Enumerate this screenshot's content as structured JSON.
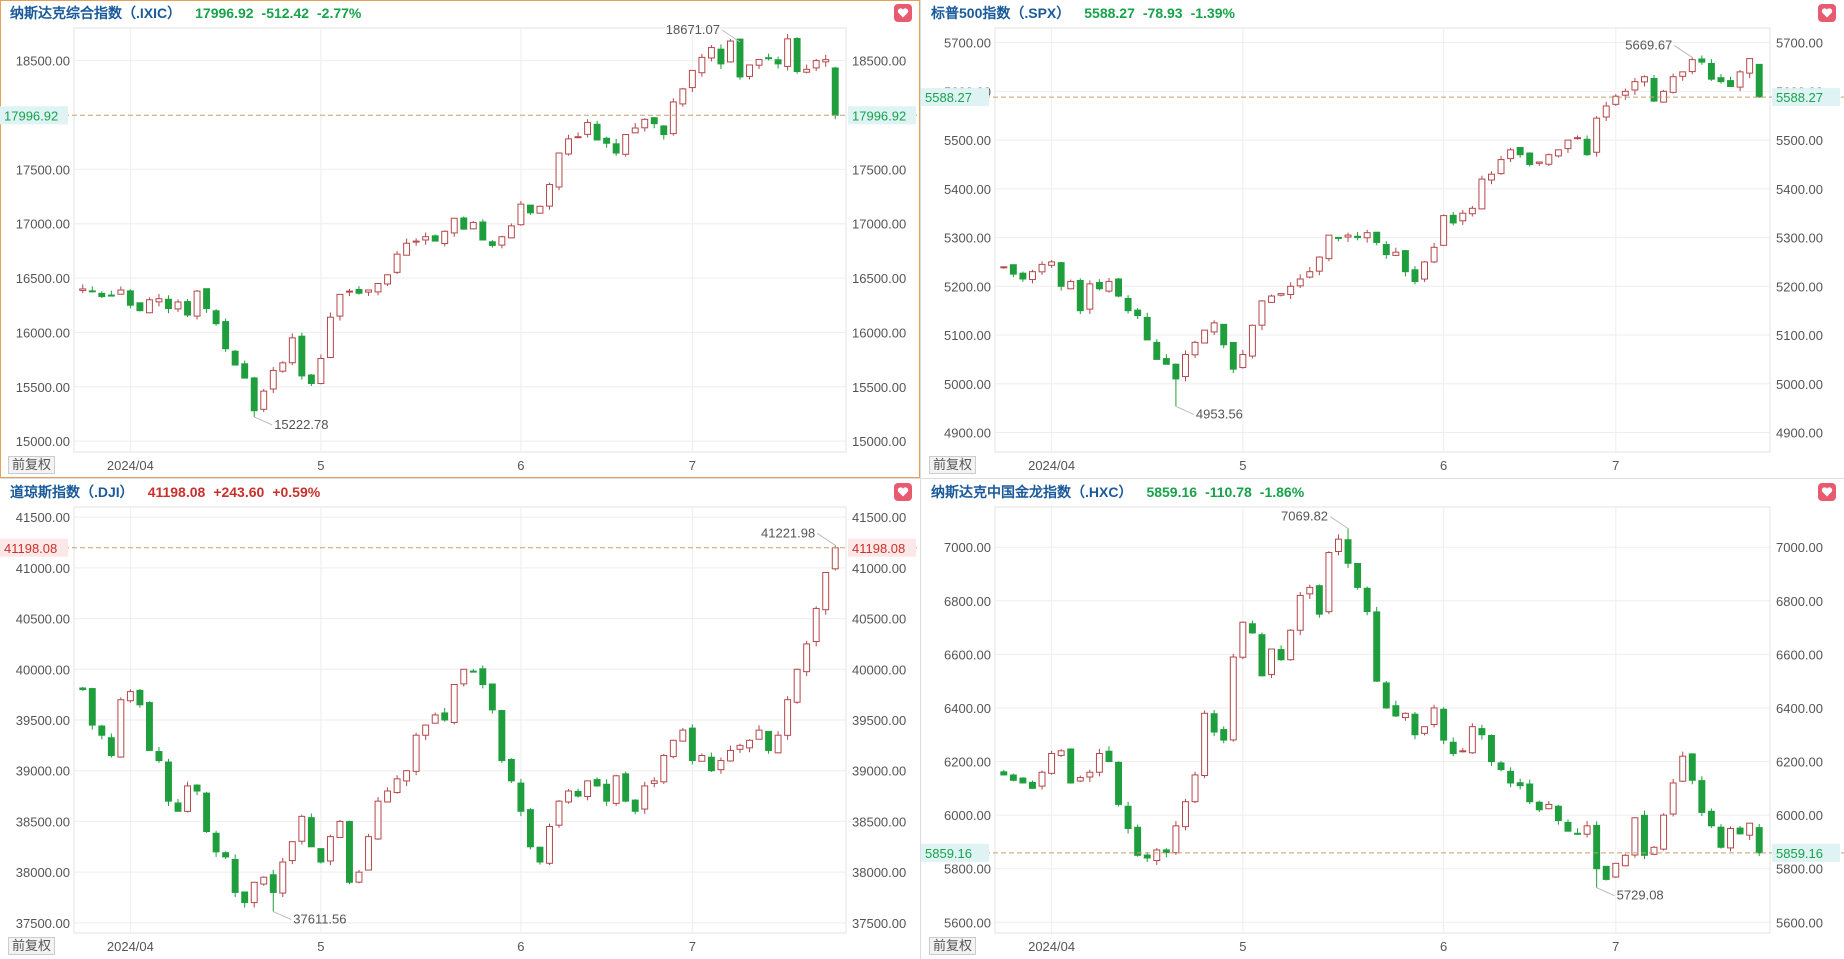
{
  "adj_label": "前复权",
  "chart_data": [
    {
      "type": "candlestick",
      "title": "纳斯达克综合指数（.IXIC）",
      "last": "17996.92",
      "change": "-512.42",
      "change_pct": "-2.77%",
      "direction": "down",
      "ylim": [
        14900,
        18800
      ],
      "yticks": [
        "18500.00",
        "17500.00",
        "17000.00",
        "16500.00",
        "16000.00",
        "15500.00",
        "15000.00"
      ],
      "ytick_values": [
        18500,
        17500,
        17000,
        16500,
        16000,
        15500,
        15000
      ],
      "xticks": [
        {
          "label": "2024/04",
          "i": 5
        },
        {
          "label": "5",
          "i": 25
        },
        {
          "label": "6",
          "i": 46
        },
        {
          "label": "7",
          "i": 64
        }
      ],
      "price_line": 17996.92,
      "high_label": "18671.07",
      "high_i": 69,
      "low_label": "15222.78",
      "low_i": 18,
      "closes": [
        16400,
        16380,
        16330,
        16340,
        16390,
        16250,
        16200,
        16300,
        16310,
        16220,
        16280,
        16160,
        16380,
        16220,
        16080,
        15850,
        15700,
        15580,
        15280,
        15460,
        15650,
        15720,
        15950,
        15600,
        15530,
        15760,
        16140,
        16350,
        16380,
        16360,
        16390,
        16450,
        16530,
        16720,
        16820,
        16840,
        16880,
        16840,
        16930,
        17050,
        16950,
        17010,
        16850,
        16800,
        16880,
        16980,
        17180,
        17100,
        17160,
        17360,
        17650,
        17780,
        17800,
        17930,
        17770,
        17740,
        17650,
        17820,
        17880,
        17960,
        17920,
        17820,
        18120,
        18240,
        18410,
        18530,
        18620,
        18470,
        18680,
        18350,
        18460,
        18510,
        18520,
        18470,
        18700,
        18400,
        18420,
        18500,
        18509,
        17996.92
      ]
    },
    {
      "type": "candlestick",
      "title": "标普500指数（.SPX）",
      "last": "5588.27",
      "change": "-78.93",
      "change_pct": "-1.39%",
      "direction": "down",
      "ylim": [
        4860,
        5730
      ],
      "yticks": [
        "5700.00",
        "5600.00",
        "5500.00",
        "5400.00",
        "5300.00",
        "5200.00",
        "5100.00",
        "5000.00",
        "4900.00"
      ],
      "ytick_values": [
        5700,
        5600,
        5500,
        5400,
        5300,
        5200,
        5100,
        5000,
        4900
      ],
      "xticks": [
        {
          "label": "2024/04",
          "i": 5
        },
        {
          "label": "5",
          "i": 25
        },
        {
          "label": "6",
          "i": 46
        },
        {
          "label": "7",
          "i": 64
        }
      ],
      "price_line": 5588.27,
      "high_label": "5669.67",
      "high_i": 72,
      "low_label": "4953.56",
      "low_i": 18,
      "closes": [
        5240,
        5225,
        5215,
        5230,
        5245,
        5250,
        5200,
        5210,
        5150,
        5205,
        5195,
        5210,
        5180,
        5150,
        5140,
        5090,
        5050,
        5040,
        5010,
        5060,
        5085,
        5110,
        5125,
        5080,
        5030,
        5060,
        5120,
        5170,
        5180,
        5185,
        5200,
        5215,
        5230,
        5260,
        5305,
        5300,
        5305,
        5300,
        5310,
        5290,
        5265,
        5270,
        5230,
        5210,
        5250,
        5280,
        5345,
        5330,
        5350,
        5360,
        5420,
        5430,
        5460,
        5480,
        5470,
        5450,
        5455,
        5470,
        5480,
        5500,
        5505,
        5470,
        5545,
        5570,
        5590,
        5600,
        5620,
        5630,
        5580,
        5600,
        5630,
        5640,
        5665,
        5660,
        5625,
        5620,
        5610,
        5640,
        5667.2,
        5588.27
      ]
    },
    {
      "type": "candlestick",
      "title": "道琼斯指数（.DJI）",
      "last": "41198.08",
      "change": "+243.60",
      "change_pct": "+0.59%",
      "direction": "up",
      "ylim": [
        37400,
        41600
      ],
      "yticks": [
        "41500.00",
        "41000.00",
        "40500.00",
        "40000.00",
        "39500.00",
        "39000.00",
        "38500.00",
        "38000.00",
        "37500.00"
      ],
      "ytick_values": [
        41500,
        41000,
        40500,
        40000,
        39500,
        39000,
        38500,
        38000,
        37500
      ],
      "xticks": [
        {
          "label": "2024/04",
          "i": 5
        },
        {
          "label": "5",
          "i": 25
        },
        {
          "label": "6",
          "i": 46
        },
        {
          "label": "7",
          "i": 64
        }
      ],
      "price_line": 41198.08,
      "high_label": "41221.98",
      "high_i": 79,
      "low_label": "37611.56",
      "low_i": 20,
      "closes": [
        39800,
        39450,
        39350,
        39150,
        39700,
        39780,
        39650,
        39200,
        39100,
        38700,
        38600,
        38850,
        38800,
        38400,
        38200,
        38150,
        37800,
        37700,
        37900,
        37950,
        37800,
        38100,
        38300,
        38550,
        38250,
        38100,
        38350,
        38500,
        37900,
        38000,
        38350,
        38700,
        38800,
        38920,
        39000,
        39350,
        39450,
        39550,
        39500,
        39850,
        40000,
        39980,
        39850,
        39600,
        39100,
        38900,
        38600,
        38250,
        38100,
        38450,
        38700,
        38800,
        38750,
        38900,
        38850,
        38700,
        38950,
        38700,
        38600,
        38850,
        38900,
        39150,
        39300,
        39400,
        39100,
        39150,
        39000,
        39100,
        39200,
        39250,
        39300,
        39400,
        39200,
        39350,
        39700,
        40000,
        40250,
        40600,
        40954.48,
        41198.08
      ]
    },
    {
      "type": "candlestick",
      "title": "纳斯达克中国金龙指数（.HXC）",
      "last": "5859.16",
      "change": "-110.78",
      "change_pct": "-1.86%",
      "direction": "down",
      "ylim": [
        5560,
        7150
      ],
      "yticks": [
        "7000.00",
        "6800.00",
        "6600.00",
        "6400.00",
        "6200.00",
        "6000.00",
        "5800.00",
        "5600.00"
      ],
      "ytick_values": [
        7000,
        6800,
        6600,
        6400,
        6200,
        6000,
        5800,
        5600
      ],
      "xticks": [
        {
          "label": "2024/04",
          "i": 5
        },
        {
          "label": "5",
          "i": 25
        },
        {
          "label": "6",
          "i": 46
        },
        {
          "label": "7",
          "i": 64
        }
      ],
      "price_line": 5859.16,
      "high_label": "7069.82",
      "high_i": 36,
      "low_label": "5729.08",
      "low_i": 62,
      "closes": [
        6150,
        6130,
        6120,
        6100,
        6160,
        6230,
        6240,
        6120,
        6140,
        6160,
        6230,
        6200,
        6040,
        5950,
        5850,
        5840,
        5870,
        5860,
        5960,
        6050,
        6150,
        6380,
        6310,
        6280,
        6590,
        6720,
        6680,
        6520,
        6620,
        6580,
        6690,
        6820,
        6850,
        6750,
        6980,
        7030,
        6940,
        6850,
        6760,
        6500,
        6400,
        6370,
        6380,
        6300,
        6330,
        6400,
        6280,
        6230,
        6240,
        6330,
        6300,
        6200,
        6170,
        6120,
        6110,
        6050,
        6020,
        6040,
        5980,
        5940,
        5930,
        5960,
        5800,
        5760,
        5820,
        5850,
        5990,
        5850,
        5880,
        6000,
        6120,
        6220,
        6130,
        6010,
        5960,
        5880,
        5950,
        5930,
        5969.94,
        5859.16
      ]
    }
  ]
}
